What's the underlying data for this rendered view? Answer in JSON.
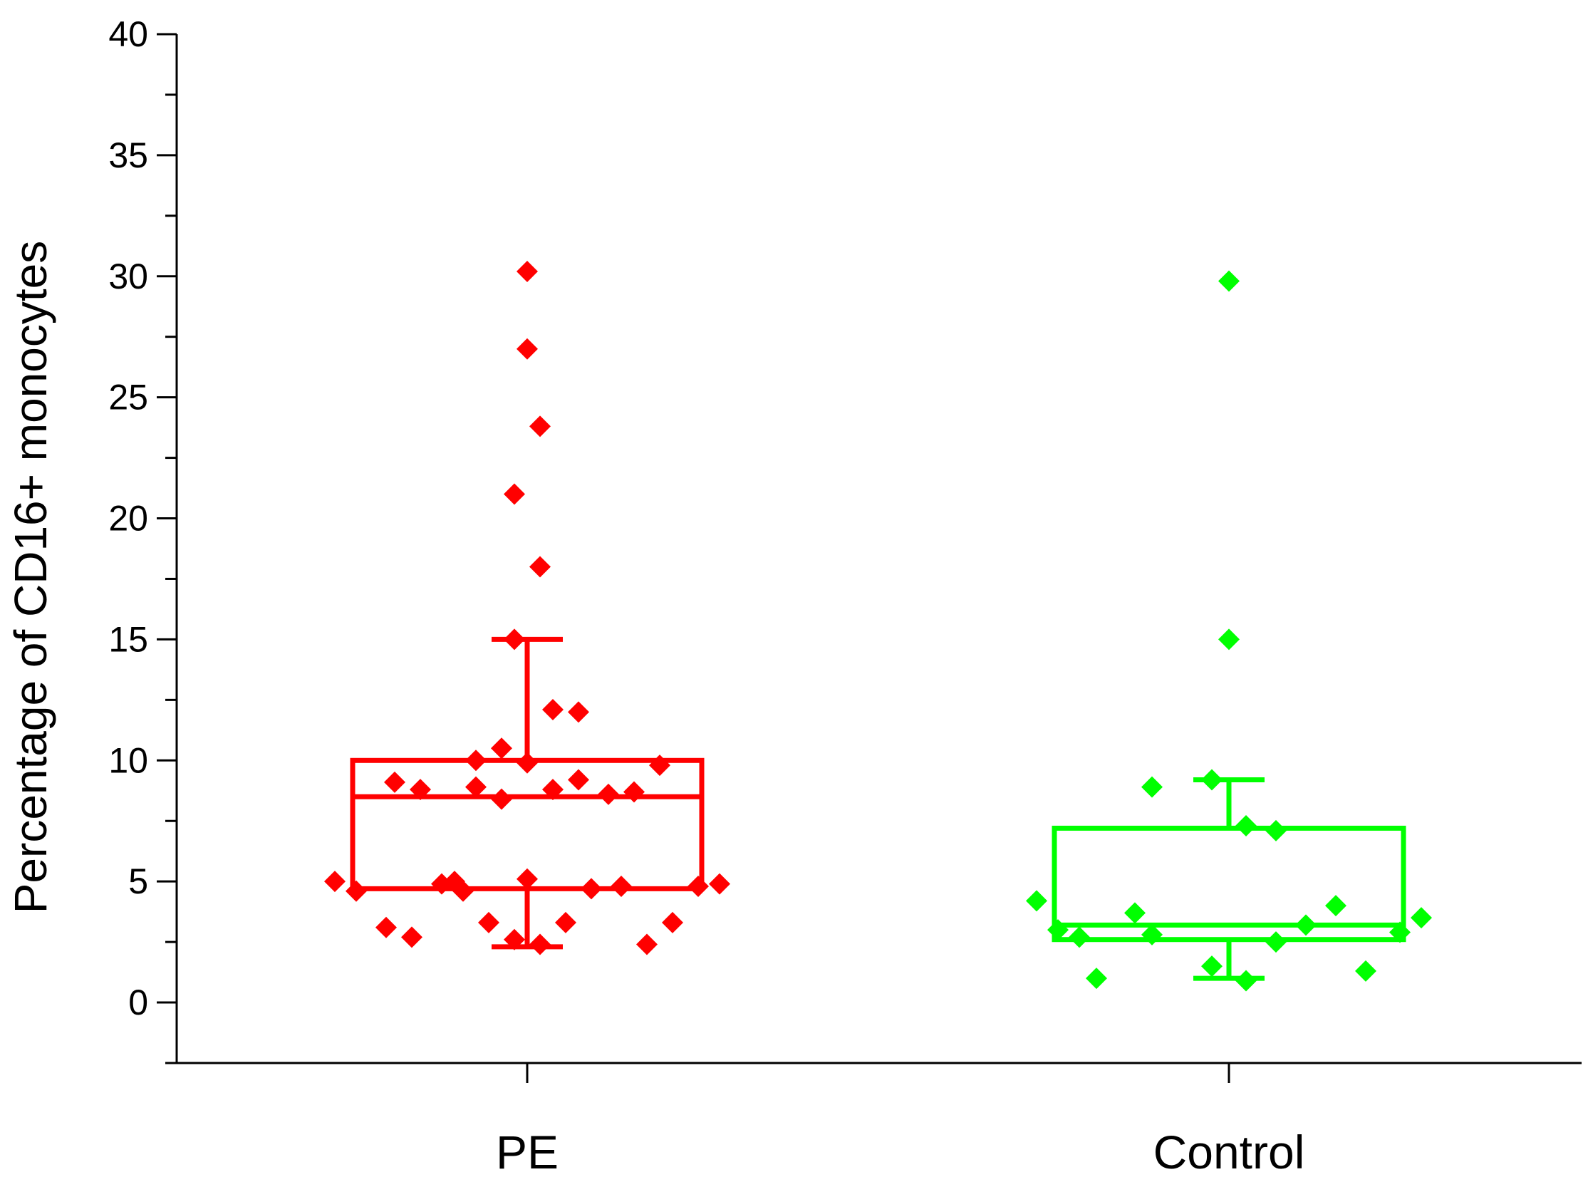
{
  "chart_data": {
    "type": "box",
    "title": "",
    "xlabel": "",
    "ylabel": "Percentage of CD16+ monocytes",
    "ylim": [
      -2.5,
      40
    ],
    "yticks": [
      0,
      5,
      10,
      15,
      20,
      25,
      30,
      35,
      40
    ],
    "categories": [
      "PE",
      "Control"
    ],
    "series": [
      {
        "name": "PE",
        "color": "#ff0000",
        "box": {
          "whisker_low": 2.3,
          "q1": 4.7,
          "median": 8.5,
          "q3": 10.0,
          "whisker_high": 15.0
        },
        "points": [
          {
            "dx": -0.45,
            "y": 5.0
          },
          {
            "dx": -0.4,
            "y": 4.6
          },
          {
            "dx": -0.33,
            "y": 3.1
          },
          {
            "dx": -0.27,
            "y": 2.7
          },
          {
            "dx": -0.31,
            "y": 9.1
          },
          {
            "dx": -0.25,
            "y": 8.8
          },
          {
            "dx": -0.2,
            "y": 4.9
          },
          {
            "dx": -0.17,
            "y": 5.0
          },
          {
            "dx": -0.15,
            "y": 4.6
          },
          {
            "dx": -0.12,
            "y": 10.0
          },
          {
            "dx": -0.12,
            "y": 8.9
          },
          {
            "dx": -0.09,
            "y": 3.3
          },
          {
            "dx": -0.06,
            "y": 10.5
          },
          {
            "dx": -0.06,
            "y": 8.4
          },
          {
            "dx": -0.03,
            "y": 2.6
          },
          {
            "dx": -0.03,
            "y": 15.0
          },
          {
            "dx": -0.03,
            "y": 21.0
          },
          {
            "dx": 0.0,
            "y": 30.2
          },
          {
            "dx": 0.0,
            "y": 27.0
          },
          {
            "dx": 0.0,
            "y": 5.1
          },
          {
            "dx": 0.0,
            "y": 9.9
          },
          {
            "dx": 0.03,
            "y": 23.8
          },
          {
            "dx": 0.03,
            "y": 18.0
          },
          {
            "dx": 0.03,
            "y": 2.4
          },
          {
            "dx": 0.06,
            "y": 8.8
          },
          {
            "dx": 0.06,
            "y": 12.1
          },
          {
            "dx": 0.09,
            "y": 3.3
          },
          {
            "dx": 0.12,
            "y": 12.0
          },
          {
            "dx": 0.12,
            "y": 9.2
          },
          {
            "dx": 0.15,
            "y": 4.7
          },
          {
            "dx": 0.19,
            "y": 8.6
          },
          {
            "dx": 0.22,
            "y": 4.8
          },
          {
            "dx": 0.25,
            "y": 8.7
          },
          {
            "dx": 0.28,
            "y": 2.4
          },
          {
            "dx": 0.31,
            "y": 9.8
          },
          {
            "dx": 0.34,
            "y": 3.3
          },
          {
            "dx": 0.4,
            "y": 4.8
          },
          {
            "dx": 0.45,
            "y": 4.9
          }
        ]
      },
      {
        "name": "Control",
        "color": "#00ff00",
        "box": {
          "whisker_low": 1.0,
          "q1": 2.6,
          "median": 3.2,
          "q3": 7.2,
          "whisker_high": 9.2
        },
        "points": [
          {
            "dx": -0.45,
            "y": 4.2
          },
          {
            "dx": -0.4,
            "y": 3.0
          },
          {
            "dx": -0.35,
            "y": 2.7
          },
          {
            "dx": -0.31,
            "y": 1.0
          },
          {
            "dx": -0.22,
            "y": 3.7
          },
          {
            "dx": -0.18,
            "y": 2.8
          },
          {
            "dx": -0.18,
            "y": 8.9
          },
          {
            "dx": -0.04,
            "y": 1.5
          },
          {
            "dx": -0.04,
            "y": 9.2
          },
          {
            "dx": 0.0,
            "y": 29.8
          },
          {
            "dx": 0.0,
            "y": 15.0
          },
          {
            "dx": 0.04,
            "y": 7.3
          },
          {
            "dx": 0.04,
            "y": 0.9
          },
          {
            "dx": 0.11,
            "y": 7.1
          },
          {
            "dx": 0.11,
            "y": 2.5
          },
          {
            "dx": 0.18,
            "y": 3.2
          },
          {
            "dx": 0.25,
            "y": 4.0
          },
          {
            "dx": 0.32,
            "y": 1.3
          },
          {
            "dx": 0.4,
            "y": 2.9
          },
          {
            "dx": 0.45,
            "y": 3.5
          }
        ]
      }
    ]
  }
}
